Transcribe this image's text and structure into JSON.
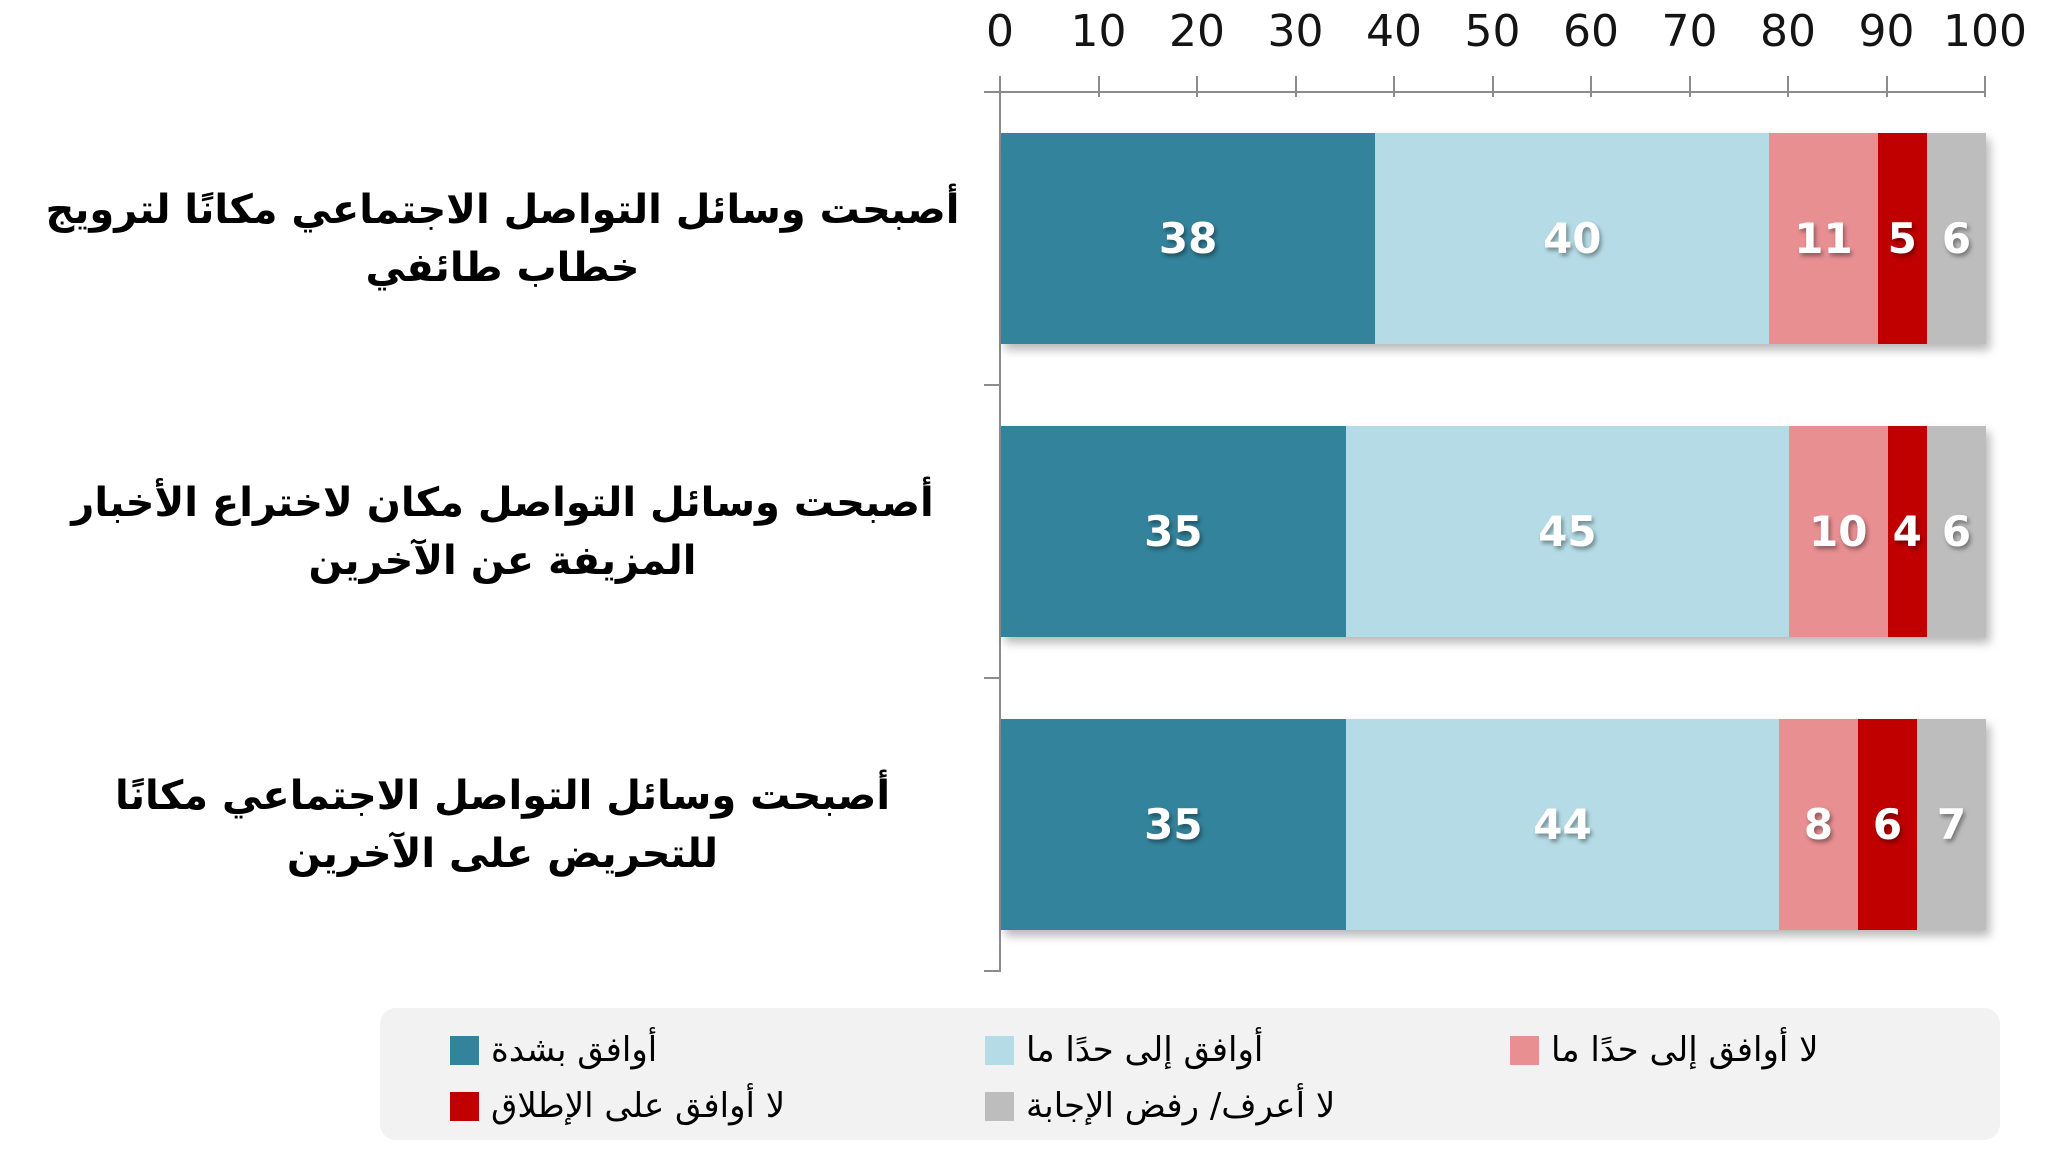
{
  "chart_data": {
    "type": "bar",
    "variant": "horizontal-stacked-100",
    "x_axis": {
      "position": "top",
      "min": 0,
      "max": 100,
      "tick_step": 10,
      "ticks": [
        0,
        10,
        20,
        30,
        40,
        50,
        60,
        70,
        80,
        90,
        100
      ]
    },
    "grid": "off",
    "categories": [
      "أصبحت وسائل التواصل الاجتماعي مكانًا لترويج خطاب طائفي",
      "أصبحت وسائل التواصل مكان لاختراع الأخبار المزيفة عن الآخرين",
      "أصبحت وسائل التواصل الاجتماعي مكانًا للتحريض على الآخرين"
    ],
    "series": [
      {
        "name": "أوافق بشدة",
        "color": "#34839C",
        "values": [
          38,
          35,
          35
        ]
      },
      {
        "name": "أوافق إلى حدًا ما",
        "color": "#B5DCE6",
        "values": [
          40,
          45,
          44
        ]
      },
      {
        "name": "لا أوافق إلى حدًا ما",
        "color": "#E88F92",
        "values": [
          11,
          10,
          8
        ]
      },
      {
        "name": "لا أوافق على الإطلاق",
        "color": "#C00000",
        "values": [
          5,
          4,
          6
        ]
      },
      {
        "name": "لا أعرف/ رفض الإجابة",
        "color": "#BDBDBD",
        "values": [
          6,
          6,
          7
        ]
      }
    ],
    "value_labels": {
      "show": true,
      "color": "#ffffff",
      "position": "inside-center"
    },
    "legend": {
      "position": "bottom",
      "background": "#F2F2F2",
      "rows": [
        [
          0,
          1,
          2
        ],
        [
          3,
          4
        ]
      ]
    }
  },
  "colors": {
    "axis_line": "#8C8C8C",
    "tick_text": "#141414",
    "category_text": "#000000",
    "background": "#FFFFFF",
    "legend_background": "#F2F2F2"
  }
}
